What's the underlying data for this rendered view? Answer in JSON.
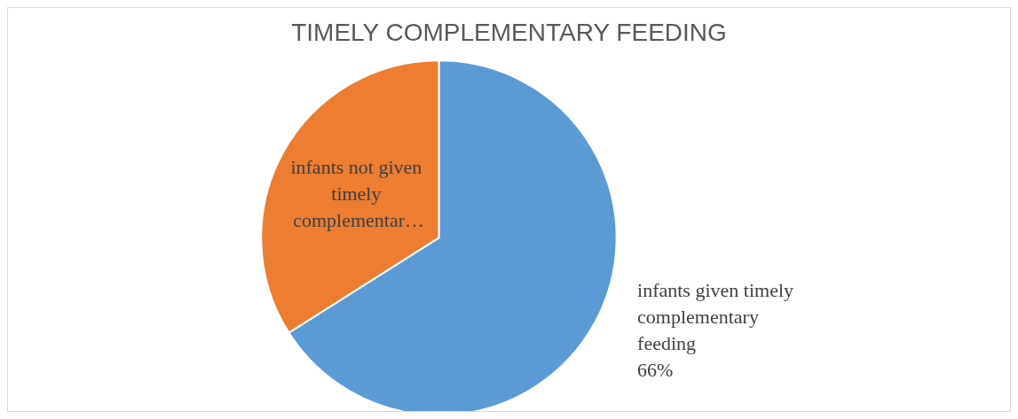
{
  "chart_data": {
    "type": "pie",
    "title": "TIMELY COMPLEMENTARY FEEDING",
    "categories": [
      "infants given timely complementary feeding",
      "infants not given timely complementar…"
    ],
    "values": [
      66,
      34
    ],
    "colors": [
      "#5b9bd5",
      "#ed7d31"
    ],
    "value_labels": [
      "66%",
      null
    ],
    "legend": false
  }
}
